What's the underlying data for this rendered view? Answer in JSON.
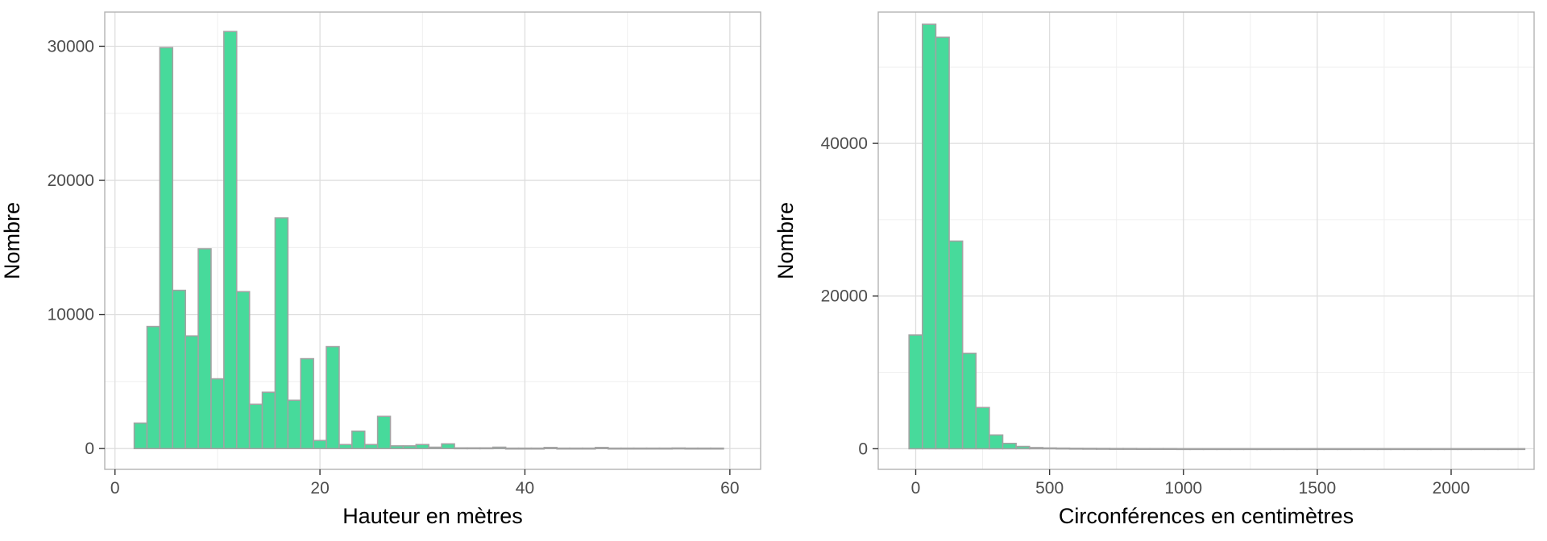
{
  "chart_data": [
    {
      "type": "bar",
      "xlabel": "Hauteur en mètres",
      "ylabel": "Nombre",
      "xlim": [
        -1,
        63
      ],
      "ylim": [
        -1550,
        32550
      ],
      "bin_width": 1.25,
      "x_ticks": [
        0,
        20,
        40,
        60
      ],
      "x_tick_labels": [
        "0",
        "20",
        "40",
        "60"
      ],
      "y_ticks": [
        0,
        10000,
        20000,
        30000
      ],
      "y_tick_labels": [
        "0",
        "10000",
        "20000",
        "30000"
      ],
      "grid": true,
      "x": [
        2.5,
        3.75,
        5,
        6.25,
        7.5,
        8.75,
        10,
        11.25,
        12.5,
        13.75,
        15,
        16.25,
        17.5,
        18.75,
        20,
        21.25,
        22.5,
        23.75,
        25,
        26.25,
        27.5,
        28.75,
        30,
        31.25,
        32.5,
        33.75,
        35,
        36.25,
        37.5,
        38.75,
        40,
        41.25,
        42.5,
        43.75,
        45,
        46.25,
        47.5,
        48.75,
        50,
        51.25,
        52.5,
        53.75,
        55,
        56.25,
        57.5,
        58.75
      ],
      "values": [
        1900,
        9100,
        29900,
        11800,
        8400,
        14900,
        5200,
        31100,
        11700,
        3300,
        4200,
        17200,
        3600,
        6700,
        600,
        7600,
        300,
        1300,
        300,
        2400,
        200,
        200,
        300,
        100,
        350,
        50,
        50,
        50,
        100,
        30,
        30,
        30,
        80,
        30,
        30,
        30,
        80,
        30,
        30,
        30,
        30,
        30,
        40,
        30,
        30,
        30
      ]
    },
    {
      "type": "bar",
      "xlabel": "Circonférences en centimètres",
      "ylabel": "Nombre",
      "xlim": [
        -140,
        2310
      ],
      "ylim": [
        -2700,
        57200
      ],
      "bin_width": 50,
      "x_ticks": [
        0,
        500,
        1000,
        1500,
        2000
      ],
      "x_tick_labels": [
        "0",
        "500",
        "1000",
        "1500",
        "2000"
      ],
      "y_ticks": [
        0,
        20000,
        40000
      ],
      "y_tick_labels": [
        "0",
        "20000",
        "40000"
      ],
      "grid": true,
      "x": [
        0,
        50,
        100,
        150,
        200,
        250,
        300,
        350,
        400,
        450,
        500,
        550,
        600,
        650,
        700,
        750,
        800,
        850,
        900,
        950,
        1000,
        1050,
        1100,
        1150,
        1200,
        1250,
        1300,
        1350,
        1400,
        1450,
        1500,
        1550,
        1600,
        1650,
        1700,
        1750,
        1800,
        1850,
        1900,
        1950,
        2000,
        2050,
        2100,
        2150,
        2200,
        2250
      ],
      "values": [
        14900,
        55600,
        53900,
        27200,
        12500,
        5400,
        1800,
        700,
        300,
        150,
        100,
        80,
        60,
        50,
        40,
        30,
        30,
        20,
        20,
        20,
        10,
        10,
        10,
        10,
        10,
        10,
        10,
        10,
        10,
        10,
        10,
        10,
        10,
        10,
        10,
        10,
        10,
        10,
        10,
        10,
        10,
        10,
        10,
        10,
        10,
        10
      ]
    }
  ],
  "colors": {
    "bar_fill": "#47da9b",
    "bar_stroke": "#a3a3a3",
    "panel_border": "#b3b3b3",
    "grid_major": "#dedede",
    "grid_minor": "#efefef"
  }
}
